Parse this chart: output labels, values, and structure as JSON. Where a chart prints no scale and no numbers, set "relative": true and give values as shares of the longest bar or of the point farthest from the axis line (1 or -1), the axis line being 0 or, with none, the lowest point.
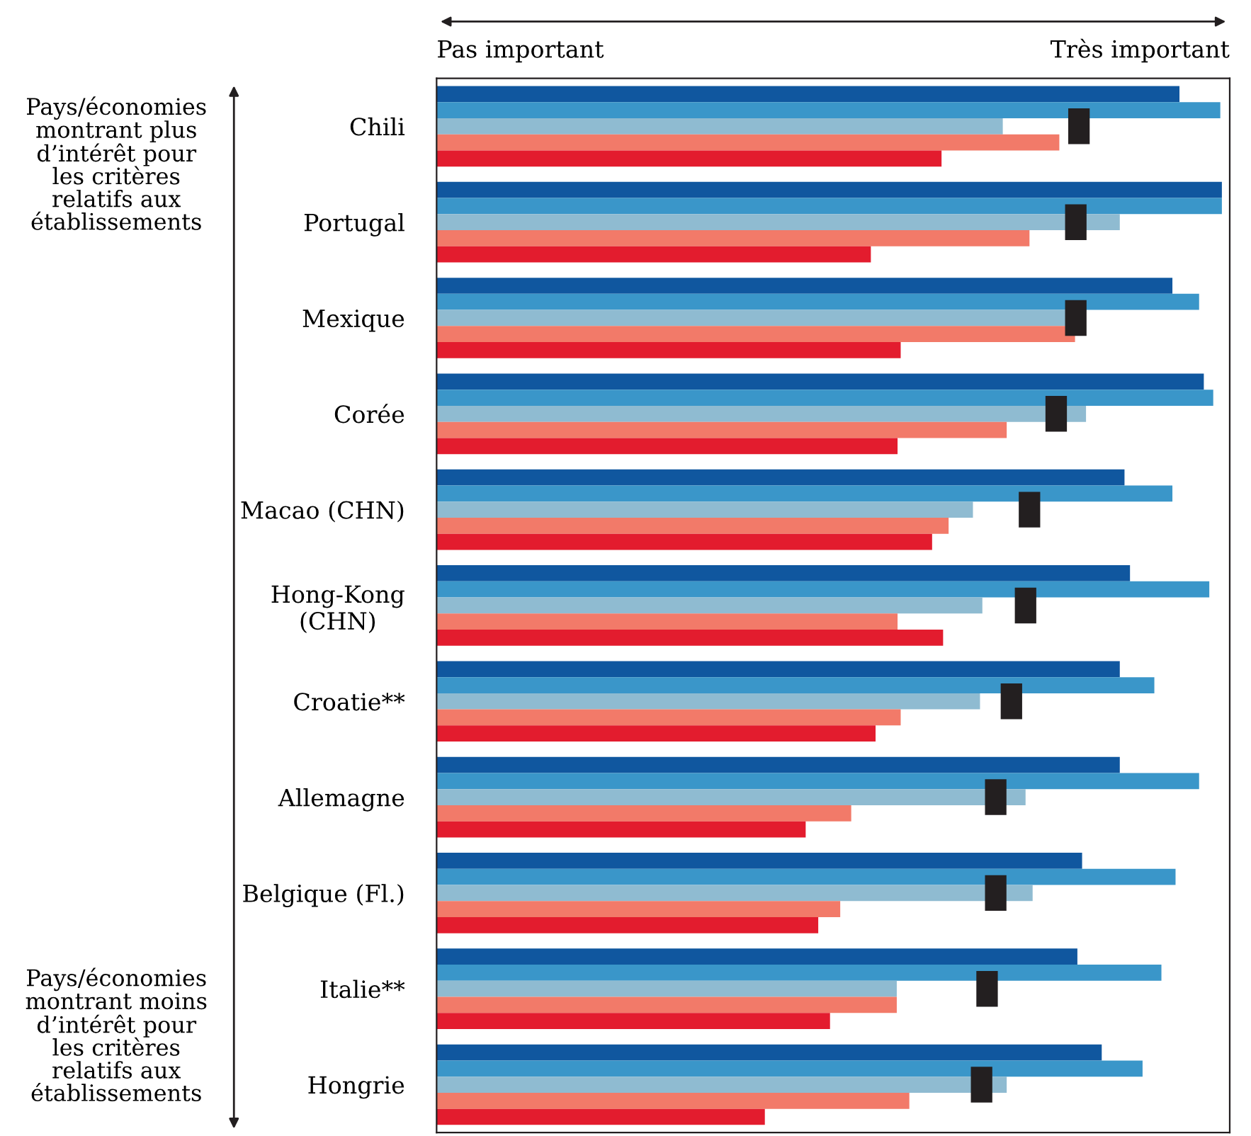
{
  "chart_data": {
    "type": "bar",
    "orientation": "horizontal",
    "relative": true,
    "grid": false,
    "legend": false,
    "categories": [
      "Chili",
      "Portugal",
      "Mexique",
      "Corée",
      "Macao (CHN)",
      "Hong-Kong\n(CHN)",
      "Croatie**",
      "Allemagne",
      "Belgique (Fl.)",
      "Italie**",
      "Hongrie"
    ],
    "series": [
      {
        "color": "#10579f",
        "values": [
          0.946,
          1.0,
          0.937,
          0.977,
          0.876,
          0.883,
          0.87,
          0.87,
          0.822,
          0.816,
          0.847
        ]
      },
      {
        "color": "#3a96c9",
        "values": [
          0.998,
          1.0,
          0.971,
          0.989,
          0.937,
          0.984,
          0.914,
          0.971,
          0.941,
          0.923,
          0.899
        ]
      },
      {
        "color": "#8fbbd1",
        "values": [
          0.721,
          0.87,
          0.802,
          0.827,
          0.683,
          0.695,
          0.692,
          0.75,
          0.759,
          0.586,
          0.726
        ]
      },
      {
        "color": "#f27a69",
        "values": [
          0.793,
          0.755,
          0.813,
          0.726,
          0.652,
          0.587,
          0.591,
          0.528,
          0.514,
          0.586,
          0.602
        ]
      },
      {
        "color": "#e31c2e",
        "values": [
          0.643,
          0.553,
          0.591,
          0.587,
          0.631,
          0.645,
          0.559,
          0.47,
          0.486,
          0.501,
          0.418
        ]
      },
      {
        "type": "scatter",
        "marker": "square",
        "color": "#231f20",
        "x": [
          "Chili",
          "Portugal",
          "Mexique",
          "Corée",
          "Macao (CHN)",
          "Hong-Kong\n(CHN)",
          "Croatie**",
          "Allemagne",
          "Belgique (Fl.)",
          "Italie**",
          "Hongrie"
        ],
        "values": [
          0.818,
          0.814,
          0.814,
          0.789,
          0.755,
          0.75,
          0.732,
          0.712,
          0.712,
          0.701,
          0.694
        ]
      }
    ],
    "annotations": [
      "Pas important",
      "Très important",
      "Pays/économies\nmontrant plus\nd’intérêt pour\nles critères\nrelatifs aux\nétablissements",
      "Pays/économies\nmontrant moins\nd’intérêt pour\nles critères\nrelatifs aux\nétablissements"
    ]
  }
}
